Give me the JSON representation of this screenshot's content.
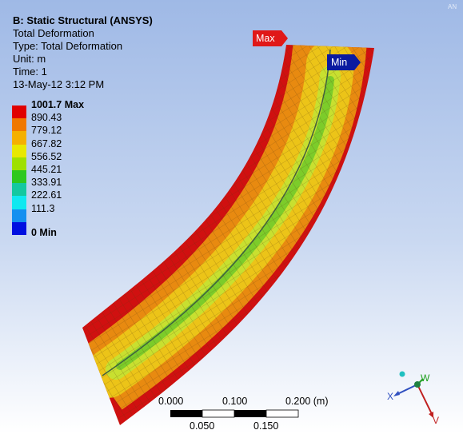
{
  "logo": "AN",
  "header": {
    "lines": [
      "B: Static Structural (ANSYS)",
      "Total Deformation",
      "Type: Total Deformation",
      "Unit: m",
      "Time: 1",
      "13-May-12 3:12 PM"
    ]
  },
  "legend": {
    "entries": [
      {
        "label": "1001.7 Max",
        "color": "#e00000"
      },
      {
        "label": "890.43",
        "color": "#f07800"
      },
      {
        "label": "779.12",
        "color": "#f4b000"
      },
      {
        "label": "667.82",
        "color": "#e8e800"
      },
      {
        "label": "556.52",
        "color": "#9ee000"
      },
      {
        "label": "445.21",
        "color": "#2ec81e"
      },
      {
        "label": "333.91",
        "color": "#14c8a0"
      },
      {
        "label": "222.61",
        "color": "#10e8f0"
      },
      {
        "label": "111.3",
        "color": "#1490f0"
      },
      {
        "label": "0 Min",
        "color": "#0010e0"
      }
    ]
  },
  "probes": {
    "max": "Max",
    "min": "Min"
  },
  "scale_bar": {
    "top_labels": [
      "0.000",
      "0.100",
      "0.200 (m)"
    ],
    "bottom_labels": [
      "0.050",
      "0.150"
    ]
  },
  "triad": {
    "x": "X",
    "w": "W",
    "v": "V"
  }
}
